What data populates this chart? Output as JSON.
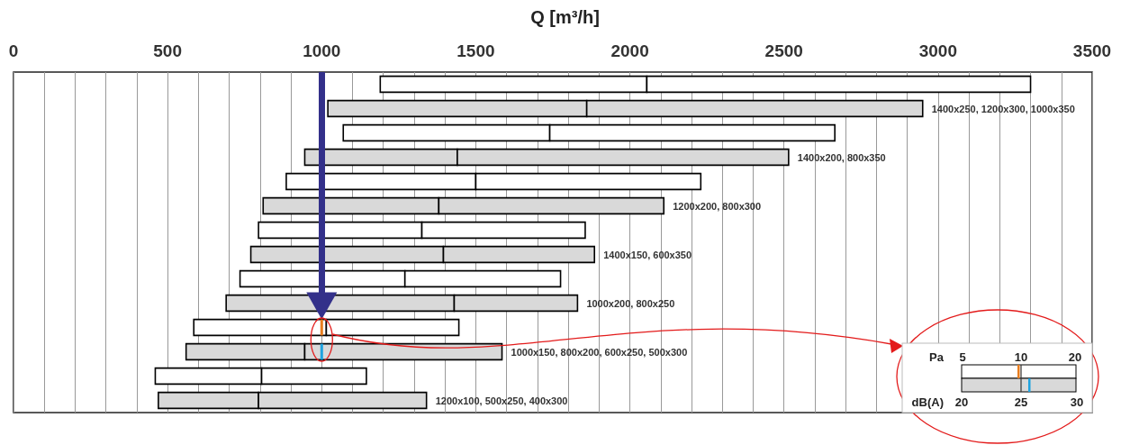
{
  "chart_data": {
    "type": "bar",
    "orientation": "horizontal",
    "title": "Q [m³/h]",
    "categories": [
      null,
      "1400x250, 1200x300, 1000x350",
      null,
      "1400x200, 800x350",
      null,
      "1200x200, 800x300",
      null,
      "1400x150, 600x350",
      null,
      "1000x200, 800x250",
      null,
      "1000x150, 800x200, 600x250, 500x300",
      null,
      "1200x100, 500x250, 400x300"
    ],
    "series": [
      {
        "base": [
          1190,
          1020,
          1070,
          945,
          885,
          810,
          795,
          770,
          735,
          690,
          585,
          560,
          460,
          470
        ],
        "values": [
          865,
          840,
          670,
          495,
          615,
          570,
          530,
          625,
          535,
          740,
          430,
          385,
          345,
          325
        ],
        "colors": [
          "#ffffff",
          "#d9d9d9",
          "#ffffff",
          "#d9d9d9",
          "#ffffff",
          "#d9d9d9",
          "#ffffff",
          "#d9d9d9",
          "#ffffff",
          "#d9d9d9",
          "#ffffff",
          "#d9d9d9",
          "#ffffff",
          "#d9d9d9"
        ]
      },
      {
        "base": [
          2055,
          1860,
          1740,
          1440,
          1500,
          1380,
          1325,
          1395,
          1270,
          1430,
          1015,
          945,
          805,
          795
        ],
        "values": [
          1245,
          1090,
          925,
          1075,
          730,
          730,
          530,
          490,
          505,
          400,
          430,
          640,
          340,
          545
        ],
        "colors": [
          "#ffffff",
          "#d9d9d9",
          "#ffffff",
          "#d9d9d9",
          "#ffffff",
          "#d9d9d9",
          "#ffffff",
          "#d9d9d9",
          "#ffffff",
          "#d9d9d9",
          "#ffffff",
          "#d9d9d9",
          "#ffffff",
          "#d9d9d9"
        ]
      }
    ],
    "xlim": [
      0,
      3500
    ],
    "xticks": [
      0,
      {
        "value": 100,
        "label": null
      },
      {
        "value": 200,
        "label": null
      },
      {
        "value": 300,
        "label": null
      },
      {
        "value": 400,
        "label": null
      },
      500,
      {
        "value": 600,
        "label": null
      },
      {
        "value": 700,
        "label": null
      },
      {
        "value": 800,
        "label": null
      },
      {
        "value": 900,
        "label": null
      },
      1000,
      {
        "value": 1100,
        "label": null
      },
      {
        "value": 1200,
        "label": null
      },
      {
        "value": 1300,
        "label": null
      },
      {
        "value": 1400,
        "label": null
      },
      1500,
      {
        "value": 1600,
        "label": null
      },
      {
        "value": 1700,
        "label": null
      },
      {
        "value": 1800,
        "label": null
      },
      {
        "value": 1900,
        "label": null
      },
      2000,
      {
        "value": 2100,
        "label": null
      },
      {
        "value": 2200,
        "label": null
      },
      {
        "value": 2300,
        "label": null
      },
      {
        "value": 2400,
        "label": null
      },
      2500,
      {
        "value": 2600,
        "label": null
      },
      {
        "value": 2700,
        "label": null
      },
      {
        "value": 2800,
        "label": null
      },
      {
        "value": 2900,
        "label": null
      },
      3000,
      {
        "value": 3100,
        "label": null
      },
      {
        "value": 3200,
        "label": null
      },
      {
        "value": 3300,
        "label": null
      },
      {
        "value": 3400,
        "label": null
      },
      3500
    ],
    "grid": "x",
    "tick_labels": "x",
    "ref_lines": [
      {
        "axis": "x",
        "value": 1000,
        "color": "#33308a"
      }
    ],
    "annotations": [
      "Pa",
      "5",
      "10",
      "20",
      "dB(A)",
      "20",
      "25",
      "30"
    ]
  }
}
